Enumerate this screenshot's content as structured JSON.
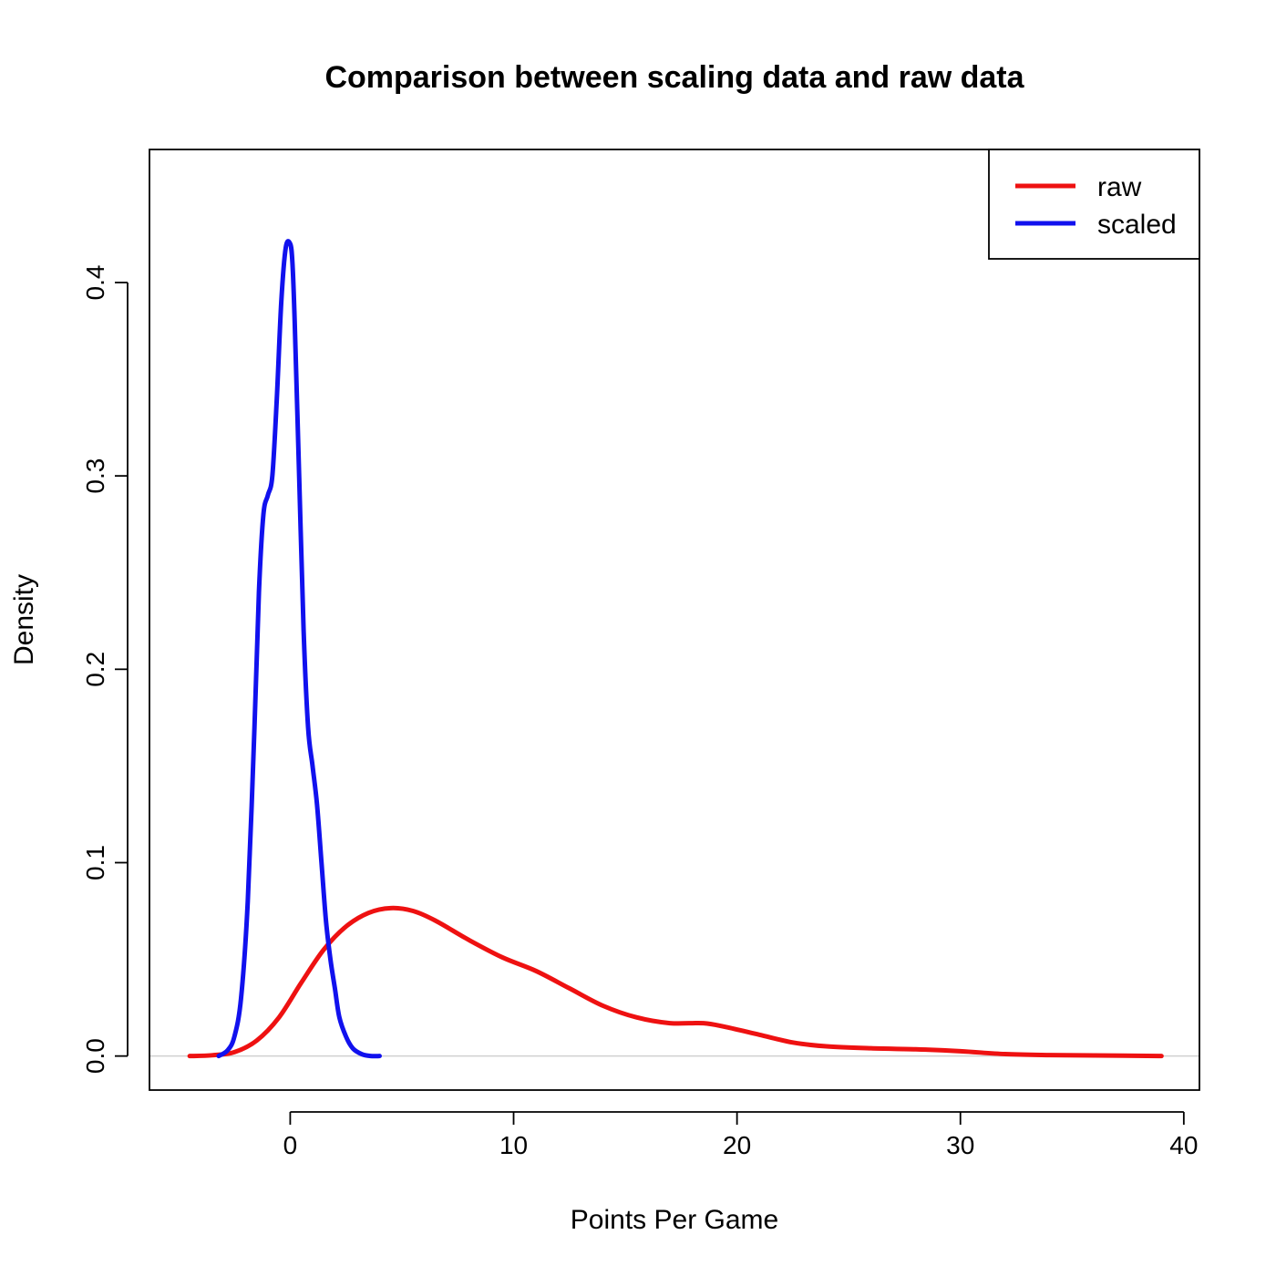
{
  "chart_data": {
    "type": "line",
    "title": "Comparison between scaling data and raw data",
    "xlabel": "Points Per Game",
    "ylabel": "Density",
    "xlim": [
      -6.3,
      40.7
    ],
    "ylim": [
      -0.0176,
      0.4688
    ],
    "x_ticks": [
      0,
      10,
      20,
      30,
      40
    ],
    "x_tick_labels": [
      "0",
      "10",
      "20",
      "30",
      "40"
    ],
    "y_ticks": [
      0.0,
      0.1,
      0.2,
      0.3,
      0.4
    ],
    "y_tick_labels": [
      "0.0",
      "0.1",
      "0.2",
      "0.3",
      "0.4"
    ],
    "baseline": 0,
    "grid": false,
    "legend": {
      "position": "top-right",
      "entries": [
        "raw",
        "scaled"
      ]
    },
    "series": [
      {
        "name": "raw",
        "color": "#ee1111",
        "x": [
          -4.5,
          -3.5,
          -2.5,
          -1.5,
          -0.5,
          0.5,
          1.5,
          2.5,
          3.5,
          4.5,
          5.5,
          6.5,
          8,
          9.5,
          11,
          12.5,
          14,
          15.5,
          17,
          18.5,
          19.5,
          21,
          22.5,
          24,
          26,
          28,
          30,
          32,
          34,
          36,
          39
        ],
        "values": [
          0.0,
          0.0004,
          0.002,
          0.008,
          0.02,
          0.038,
          0.055,
          0.067,
          0.074,
          0.0765,
          0.075,
          0.07,
          0.06,
          0.051,
          0.044,
          0.035,
          0.026,
          0.02,
          0.017,
          0.017,
          0.015,
          0.011,
          0.007,
          0.005,
          0.004,
          0.0035,
          0.0025,
          0.001,
          0.0005,
          0.0003,
          0.0
        ]
      },
      {
        "name": "scaled",
        "color": "#1111ee",
        "x": [
          -3.2,
          -2.8,
          -2.5,
          -2.2,
          -1.9,
          -1.6,
          -1.4,
          -1.2,
          -1.0,
          -0.8,
          -0.6,
          -0.4,
          -0.2,
          0.0,
          0.1,
          0.2,
          0.4,
          0.6,
          0.8,
          1.0,
          1.2,
          1.4,
          1.6,
          1.8,
          2.0,
          2.2,
          2.5,
          2.8,
          3.2,
          3.6,
          4.0
        ],
        "values": [
          0.0,
          0.003,
          0.01,
          0.03,
          0.08,
          0.17,
          0.24,
          0.28,
          0.29,
          0.3,
          0.34,
          0.39,
          0.418,
          0.42,
          0.41,
          0.38,
          0.3,
          0.22,
          0.17,
          0.15,
          0.13,
          0.1,
          0.07,
          0.05,
          0.035,
          0.02,
          0.01,
          0.004,
          0.001,
          0.0,
          0.0
        ]
      }
    ]
  }
}
